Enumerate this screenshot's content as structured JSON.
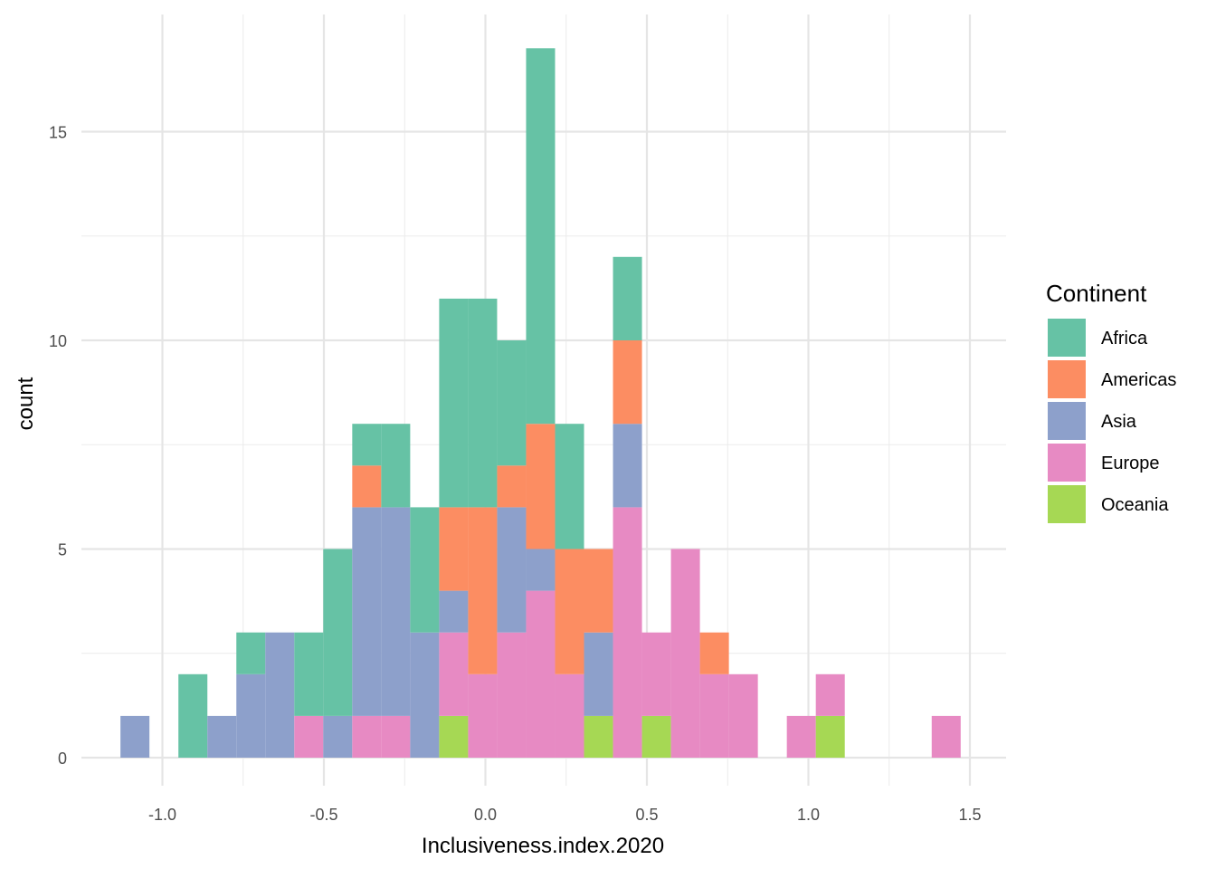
{
  "chart_data": {
    "type": "bar",
    "subtype": "stacked-histogram",
    "title": "",
    "xlabel": "Inclusiveness.index.2020",
    "ylabel": "count",
    "xlim": [
      -1.25,
      1.6
    ],
    "ylim": [
      -0.7,
      17.5
    ],
    "x_ticks": [
      -1.0,
      -0.5,
      0.0,
      0.5,
      1.0,
      1.5
    ],
    "x_tick_labels": [
      "-1.0",
      "-0.5",
      "0.0",
      "0.5",
      "1.0",
      "1.5"
    ],
    "y_ticks": [
      0,
      5,
      10,
      15
    ],
    "y_tick_labels": [
      "0",
      "5",
      "10",
      "15"
    ],
    "grid": true,
    "bin_width": 0.0897,
    "bin_centers": [
      -1.085,
      -0.9056,
      -0.8159,
      -0.7262,
      -0.6365,
      -0.5468,
      -0.4571,
      -0.3674,
      -0.2777,
      -0.188,
      -0.0983,
      -0.0086,
      0.0811,
      0.1708,
      0.2605,
      0.3502,
      0.4399,
      0.5296,
      0.6193,
      0.709,
      0.7987,
      0.9781,
      1.0678,
      1.4266
    ],
    "series": [
      {
        "name": "Oceania",
        "color": "#A6D854",
        "values": [
          0,
          0,
          0,
          0,
          0,
          0,
          0,
          0,
          0,
          0,
          1,
          0,
          0,
          0,
          0,
          1,
          0,
          1,
          0,
          0,
          0,
          0,
          1,
          0
        ]
      },
      {
        "name": "Europe",
        "color": "#E78AC3",
        "values": [
          0,
          0,
          0,
          0,
          0,
          1,
          0,
          1,
          1,
          0,
          2,
          2,
          3,
          4,
          2,
          0,
          6,
          2,
          5,
          2,
          2,
          1,
          1,
          1
        ]
      },
      {
        "name": "Asia",
        "color": "#8DA0CB",
        "values": [
          1,
          0,
          1,
          2,
          3,
          0,
          1,
          5,
          5,
          3,
          1,
          0,
          3,
          1,
          0,
          2,
          2,
          0,
          0,
          0,
          0,
          0,
          0,
          0
        ]
      },
      {
        "name": "Americas",
        "color": "#FC8D62",
        "values": [
          0,
          0,
          0,
          0,
          0,
          0,
          0,
          1,
          0,
          0,
          2,
          4,
          1,
          3,
          3,
          2,
          2,
          0,
          0,
          1,
          0,
          0,
          0,
          0
        ]
      },
      {
        "name": "Africa",
        "color": "#66C2A5",
        "values": [
          0,
          2,
          0,
          1,
          0,
          2,
          4,
          1,
          2,
          3,
          5,
          5,
          3,
          9,
          3,
          0,
          2,
          0,
          0,
          0,
          0,
          0,
          0,
          0
        ]
      }
    ],
    "legend": {
      "title": "Continent",
      "placement": "right",
      "entries": [
        {
          "name": "Africa",
          "color": "#66C2A5"
        },
        {
          "name": "Americas",
          "color": "#FC8D62"
        },
        {
          "name": "Asia",
          "color": "#8DA0CB"
        },
        {
          "name": "Europe",
          "color": "#E78AC3"
        },
        {
          "name": "Oceania",
          "color": "#A6D854"
        }
      ]
    }
  }
}
